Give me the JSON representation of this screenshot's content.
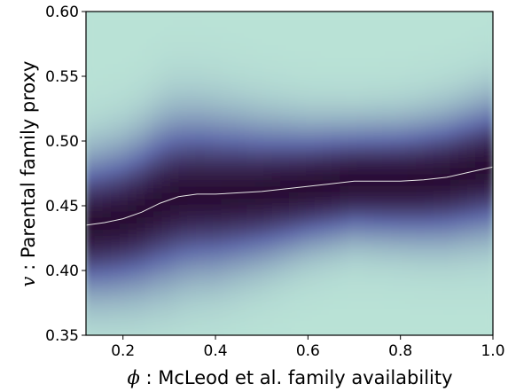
{
  "chart_data": {
    "type": "heatmap",
    "title": "",
    "xlabel": {
      "symbol": "ϕ",
      "text": " : McLeod et al. family availability"
    },
    "ylabel": {
      "symbol": "v",
      "text": " : Parental family proxy"
    },
    "xlim": [
      0.12,
      1.0
    ],
    "ylim": [
      0.35,
      0.6
    ],
    "xticks": [
      0.2,
      0.4,
      0.6,
      0.8,
      1.0
    ],
    "xtick_labels": [
      "0.2",
      "0.4",
      "0.6",
      "0.8",
      "1.0"
    ],
    "yticks": [
      0.35,
      0.4,
      0.45,
      0.5,
      0.55,
      0.6
    ],
    "ytick_labels": [
      "0.35",
      "0.40",
      "0.45",
      "0.50",
      "0.55",
      "0.60"
    ],
    "colormap": {
      "low": "#b9e2d6",
      "mid": "#5f6aa8",
      "high": "#2a0f35"
    },
    "mean_line_color": "#e6e6e6",
    "mean_line": {
      "x": [
        0.12,
        0.16,
        0.2,
        0.24,
        0.28,
        0.32,
        0.36,
        0.4,
        0.45,
        0.5,
        0.55,
        0.6,
        0.65,
        0.7,
        0.75,
        0.8,
        0.85,
        0.9,
        0.95,
        1.0
      ],
      "y": [
        0.435,
        0.437,
        0.44,
        0.445,
        0.452,
        0.457,
        0.459,
        0.459,
        0.46,
        0.461,
        0.463,
        0.465,
        0.467,
        0.469,
        0.469,
        0.469,
        0.47,
        0.472,
        0.476,
        0.48
      ]
    },
    "band_width": [
      [
        0.12,
        0.034
      ],
      [
        0.2,
        0.036
      ],
      [
        0.3,
        0.04
      ],
      [
        0.4,
        0.038
      ],
      [
        0.5,
        0.034
      ],
      [
        0.6,
        0.03
      ],
      [
        0.7,
        0.028
      ],
      [
        0.8,
        0.029
      ],
      [
        0.9,
        0.031
      ],
      [
        1.0,
        0.033
      ]
    ]
  }
}
